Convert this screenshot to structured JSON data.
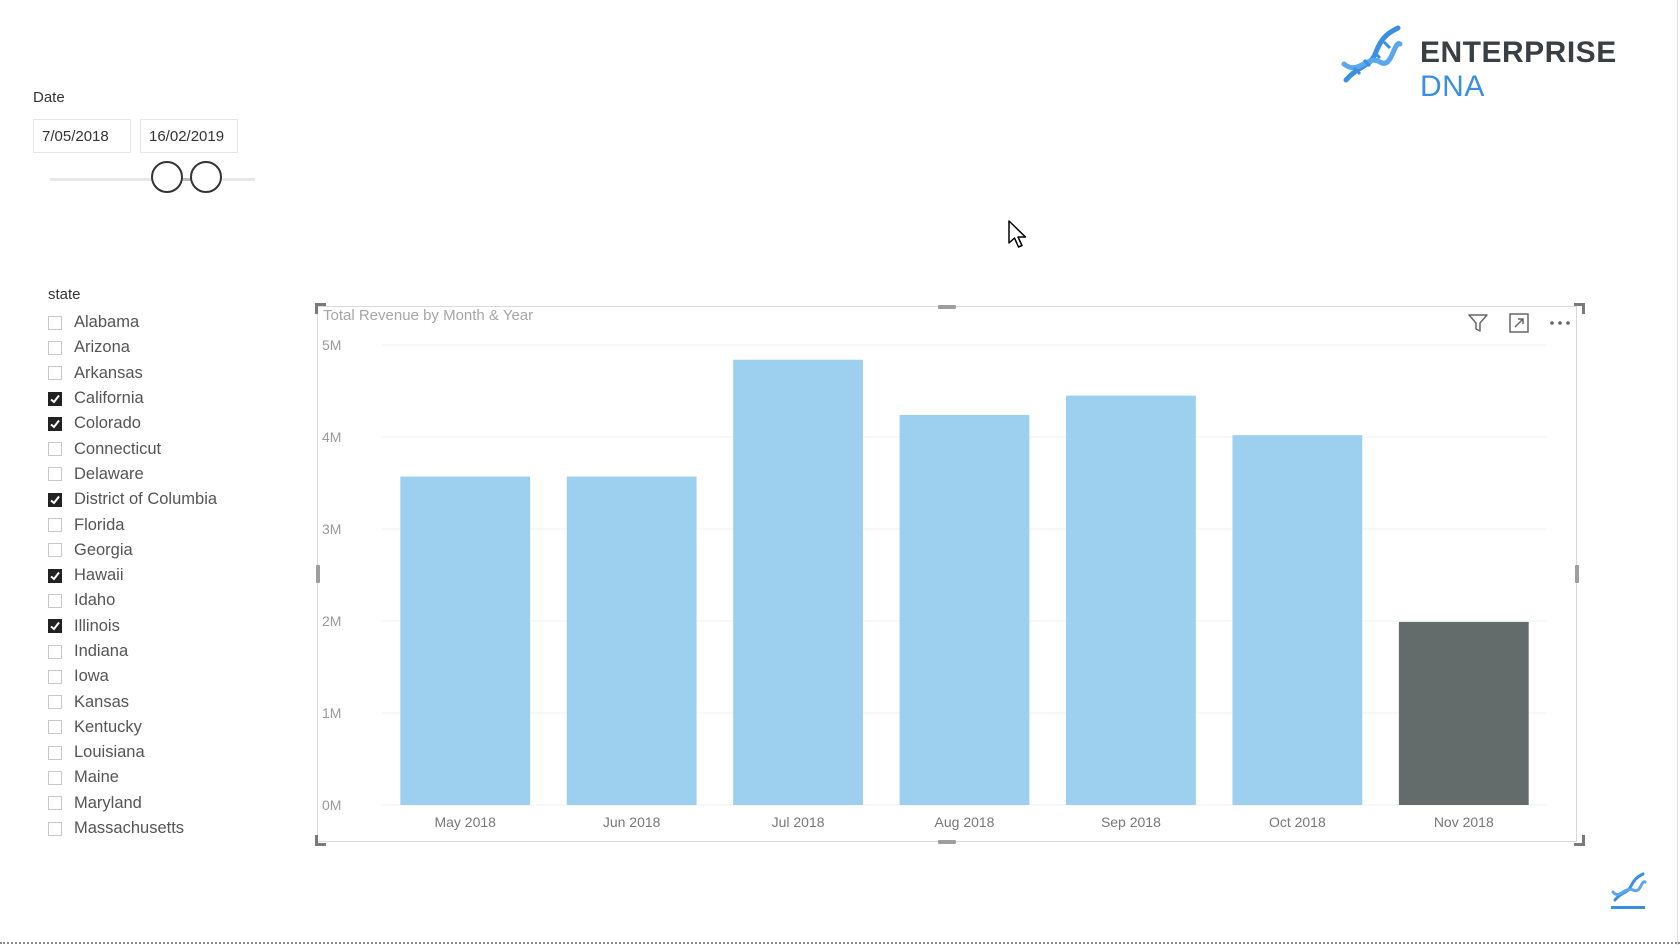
{
  "logo": {
    "brand_primary": "ENTERPRISE",
    "brand_secondary": "DNA",
    "icon": "dna-helix-icon",
    "colors": {
      "primary": "#3a3f44",
      "accent": "#3b8fe0"
    }
  },
  "date_slicer": {
    "label": "Date",
    "start": "7/05/2018",
    "end": "16/02/2019"
  },
  "state_slicer": {
    "label": "state",
    "items": [
      {
        "name": "Alabama",
        "checked": false
      },
      {
        "name": "Arizona",
        "checked": false
      },
      {
        "name": "Arkansas",
        "checked": false
      },
      {
        "name": "California",
        "checked": true
      },
      {
        "name": "Colorado",
        "checked": true
      },
      {
        "name": "Connecticut",
        "checked": false
      },
      {
        "name": "Delaware",
        "checked": false
      },
      {
        "name": "District of Columbia",
        "checked": true
      },
      {
        "name": "Florida",
        "checked": false
      },
      {
        "name": "Georgia",
        "checked": false
      },
      {
        "name": "Hawaii",
        "checked": true
      },
      {
        "name": "Idaho",
        "checked": false
      },
      {
        "name": "Illinois",
        "checked": true
      },
      {
        "name": "Indiana",
        "checked": false
      },
      {
        "name": "Iowa",
        "checked": false
      },
      {
        "name": "Kansas",
        "checked": false
      },
      {
        "name": "Kentucky",
        "checked": false
      },
      {
        "name": "Louisiana",
        "checked": false
      },
      {
        "name": "Maine",
        "checked": false
      },
      {
        "name": "Maryland",
        "checked": false
      },
      {
        "name": "Massachusetts",
        "checked": false
      }
    ]
  },
  "visual": {
    "title": "Total Revenue by Month & Year",
    "header_icons": [
      "filter-icon",
      "focus-mode-icon",
      "more-options-icon"
    ]
  },
  "chart_data": {
    "type": "bar",
    "title": "Total Revenue by Month & Year",
    "xlabel": "",
    "ylabel": "",
    "categories": [
      "May 2018",
      "Jun 2018",
      "Jul 2018",
      "Aug 2018",
      "Sep 2018",
      "Oct 2018",
      "Nov 2018"
    ],
    "values": [
      3570000,
      3570000,
      4840000,
      4240000,
      4450000,
      4020000,
      1990000
    ],
    "bar_colors": [
      "#9dcfee",
      "#9dcfee",
      "#9dcfee",
      "#9dcfee",
      "#9dcfee",
      "#9dcfee",
      "#636b6b"
    ],
    "ylim": [
      0,
      5000000
    ],
    "yticks": [
      {
        "value": 0,
        "label": "0M"
      },
      {
        "value": 1000000,
        "label": "1M"
      },
      {
        "value": 2000000,
        "label": "2M"
      },
      {
        "value": 3000000,
        "label": "3M"
      },
      {
        "value": 4000000,
        "label": "4M"
      },
      {
        "value": 5000000,
        "label": "5M"
      }
    ],
    "grid": true,
    "legend": "none"
  }
}
